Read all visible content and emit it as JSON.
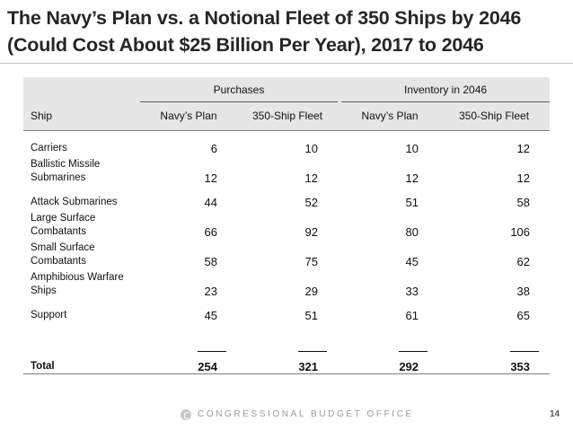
{
  "title": "The Navy’s Plan vs. a Notional Fleet of 350 Ships by 2046 (Could Cost About $25 Billion Per Year), 2017 to 2046",
  "table": {
    "groups": {
      "purchases": "Purchases",
      "inventory": "Inventory in 2046"
    },
    "headers": {
      "ship": "Ship",
      "p_navy": "Navy’s Plan",
      "p_350": "350-Ship Fleet",
      "i_navy": "Navy’s Plan",
      "i_350": "350-Ship Fleet"
    },
    "rows": [
      {
        "label1": "Carriers",
        "label2": "",
        "p_navy": "6",
        "p_350": "10",
        "i_navy": "10",
        "i_350": "12"
      },
      {
        "label1": "Ballistic Missile",
        "label2": "Submarines",
        "p_navy": "12",
        "p_350": "12",
        "i_navy": "12",
        "i_350": "12"
      },
      {
        "label1": "Attack Submarines",
        "label2": "",
        "p_navy": "44",
        "p_350": "52",
        "i_navy": "51",
        "i_350": "58"
      },
      {
        "label1": "Large Surface",
        "label2": "Combatants",
        "p_navy": "66",
        "p_350": "92",
        "i_navy": "80",
        "i_350": "106"
      },
      {
        "label1": "Small Surface",
        "label2": "Combatants",
        "p_navy": "58",
        "p_350": "75",
        "i_navy": "45",
        "i_350": "62"
      },
      {
        "label1": "Amphibious Warfare",
        "label2": "Ships",
        "p_navy": "23",
        "p_350": "29",
        "i_navy": "33",
        "i_350": "38"
      },
      {
        "label1": "Support",
        "label2": "",
        "p_navy": "45",
        "p_350": "51",
        "i_navy": "61",
        "i_350": "65"
      }
    ],
    "total": {
      "label": "Total",
      "p_navy": "254",
      "p_350": "321",
      "i_navy": "292",
      "i_350": "353"
    }
  },
  "footer": {
    "org": "CONGRESSIONAL BUDGET OFFICE",
    "page": "14"
  },
  "colors": {
    "header_bg": "#e6e6e6",
    "title": "#262626",
    "footer_text": "#9a9a9a"
  }
}
